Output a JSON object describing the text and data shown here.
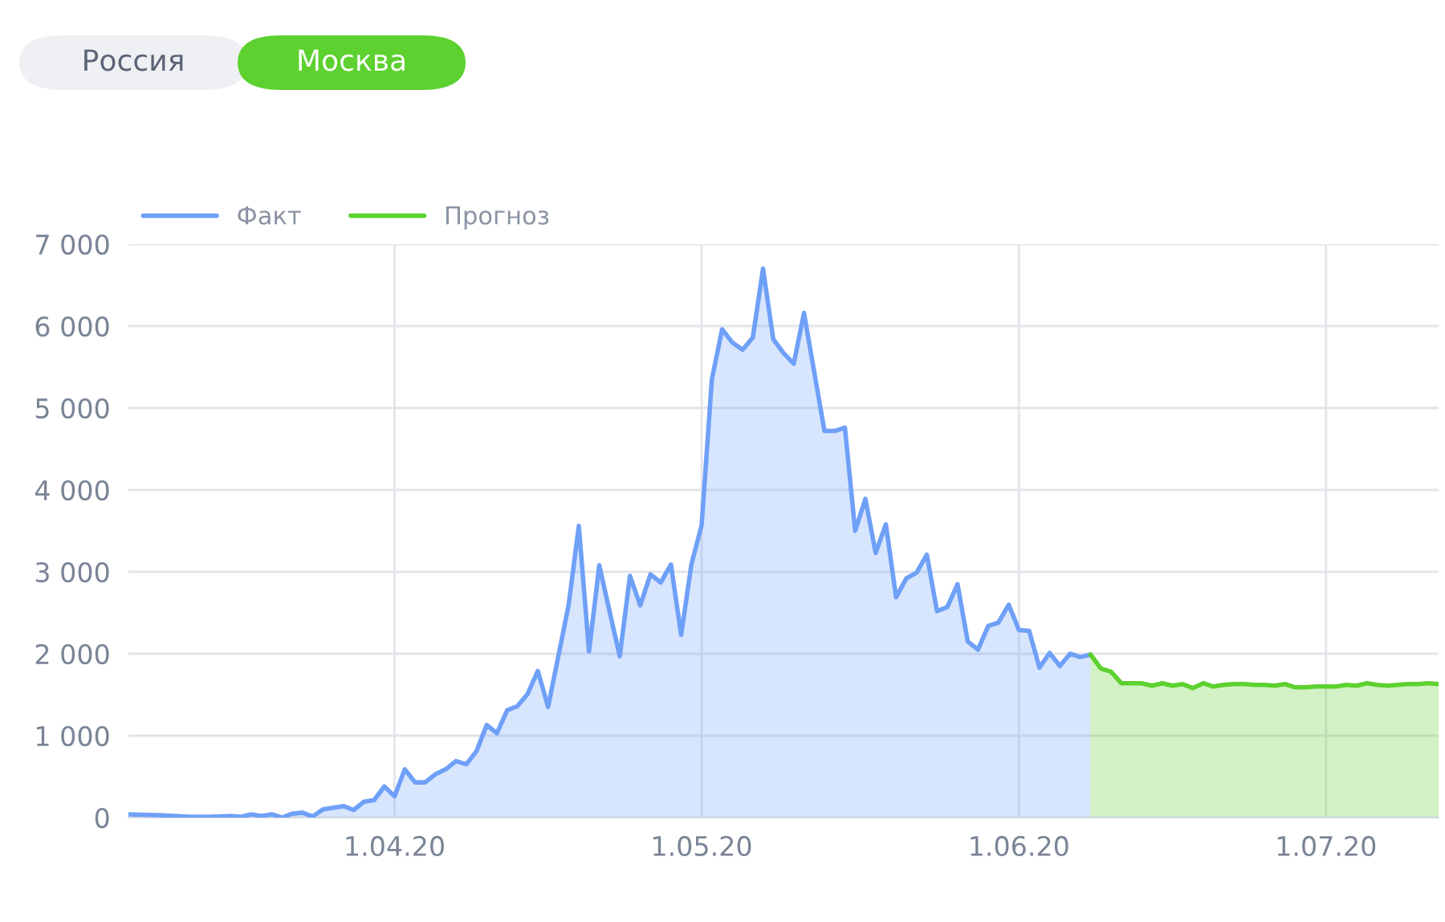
{
  "chart_data": {
    "type": "area",
    "annotations": [
      "Россия",
      "Москва"
    ],
    "xlim": [
      "2020-03-06",
      "2020-07-12"
    ],
    "xticks": [
      {
        "value": "2020-04-01",
        "label": "1.04.20"
      },
      {
        "value": "2020-05-01",
        "label": "1.05.20"
      },
      {
        "value": "2020-06-01",
        "label": "1.06.20"
      },
      {
        "value": "2020-07-01",
        "label": "1.07.20"
      }
    ],
    "ylim": [
      0,
      7000
    ],
    "yticks": [
      {
        "value": 0,
        "label": "0"
      },
      {
        "value": 1000,
        "label": "1 000"
      },
      {
        "value": 2000,
        "label": "2 000"
      },
      {
        "value": 3000,
        "label": "3 000"
      },
      {
        "value": 4000,
        "label": "4 000"
      },
      {
        "value": 5000,
        "label": "5 000"
      },
      {
        "value": 6000,
        "label": "6 000"
      },
      {
        "value": 7000,
        "label": "7 000"
      }
    ],
    "grid": true,
    "legend": "top left",
    "series": [
      {
        "name": "Факт",
        "color": "#6fa0f7",
        "x": [
          "2020-03-06",
          "2020-03-09",
          "2020-03-12",
          "2020-03-14",
          "2020-03-16",
          "2020-03-17",
          "2020-03-18",
          "2020-03-19",
          "2020-03-20",
          "2020-03-21",
          "2020-03-22",
          "2020-03-23",
          "2020-03-24",
          "2020-03-25",
          "2020-03-27",
          "2020-03-28",
          "2020-03-29",
          "2020-03-30",
          "2020-03-31",
          "2020-04-01",
          "2020-04-02",
          "2020-04-03",
          "2020-04-04",
          "2020-04-05",
          "2020-04-06",
          "2020-04-07",
          "2020-04-08",
          "2020-04-09",
          "2020-04-10",
          "2020-04-11",
          "2020-04-12",
          "2020-04-13",
          "2020-04-14",
          "2020-04-15",
          "2020-04-16",
          "2020-04-17",
          "2020-04-18",
          "2020-04-19",
          "2020-04-20",
          "2020-04-21",
          "2020-04-22",
          "2020-04-23",
          "2020-04-24",
          "2020-04-25",
          "2020-04-26",
          "2020-04-27",
          "2020-04-28",
          "2020-04-29",
          "2020-04-30",
          "2020-05-01",
          "2020-05-02",
          "2020-05-03",
          "2020-05-04",
          "2020-05-05",
          "2020-05-06",
          "2020-05-07",
          "2020-05-08",
          "2020-05-09",
          "2020-05-10",
          "2020-05-11",
          "2020-05-13",
          "2020-05-14",
          "2020-05-15",
          "2020-05-16",
          "2020-05-17",
          "2020-05-18",
          "2020-05-19",
          "2020-05-20",
          "2020-05-21",
          "2020-05-22",
          "2020-05-23",
          "2020-05-24",
          "2020-05-25",
          "2020-05-26",
          "2020-05-27",
          "2020-05-28",
          "2020-05-29",
          "2020-05-30",
          "2020-05-31",
          "2020-06-01",
          "2020-06-02",
          "2020-06-03",
          "2020-06-04",
          "2020-06-05",
          "2020-06-06",
          "2020-06-07",
          "2020-06-08"
        ],
        "values": [
          40,
          30,
          10,
          10,
          20,
          10,
          40,
          20,
          40,
          0,
          47,
          60,
          13,
          100,
          140,
          93,
          193,
          213,
          380,
          260,
          590,
          430,
          430,
          530,
          590,
          690,
          650,
          810,
          1130,
          1030,
          1310,
          1360,
          1510,
          1790,
          1350,
          1970,
          2590,
          3560,
          2030,
          3080,
          2520,
          1970,
          2950,
          2590,
          2970,
          2870,
          3090,
          2230,
          3090,
          3570,
          5350,
          5960,
          5800,
          5710,
          5860,
          6700,
          5840,
          5670,
          5540,
          6160,
          4720,
          4720,
          4760,
          3500,
          3890,
          3230,
          3580,
          2690,
          2920,
          2990,
          3210,
          2520,
          2570,
          2850,
          2150,
          2050,
          2340,
          2380,
          2600,
          2290,
          2280,
          1830,
          2010,
          1850,
          2000,
          1960,
          1990
        ]
      },
      {
        "name": "Прогноз",
        "color": "#5dd12f",
        "x": [
          "2020-06-08",
          "2020-06-09",
          "2020-06-10",
          "2020-06-11",
          "2020-06-12",
          "2020-06-13",
          "2020-06-14",
          "2020-06-15",
          "2020-06-16",
          "2020-06-17",
          "2020-06-18",
          "2020-06-19",
          "2020-06-20",
          "2020-06-21",
          "2020-06-22",
          "2020-06-23",
          "2020-06-24",
          "2020-06-25",
          "2020-06-26",
          "2020-06-27",
          "2020-06-28",
          "2020-06-29",
          "2020-06-30",
          "2020-07-01",
          "2020-07-02",
          "2020-07-03",
          "2020-07-04",
          "2020-07-05",
          "2020-07-06",
          "2020-07-07",
          "2020-07-08",
          "2020-07-09",
          "2020-07-10",
          "2020-07-11",
          "2020-07-12"
        ],
        "values": [
          1990,
          1820,
          1780,
          1640,
          1640,
          1640,
          1610,
          1640,
          1610,
          1630,
          1580,
          1640,
          1600,
          1620,
          1630,
          1630,
          1620,
          1620,
          1610,
          1630,
          1590,
          1590,
          1600,
          1600,
          1600,
          1620,
          1610,
          1640,
          1620,
          1610,
          1620,
          1630,
          1630,
          1640,
          1630
        ]
      }
    ]
  }
}
